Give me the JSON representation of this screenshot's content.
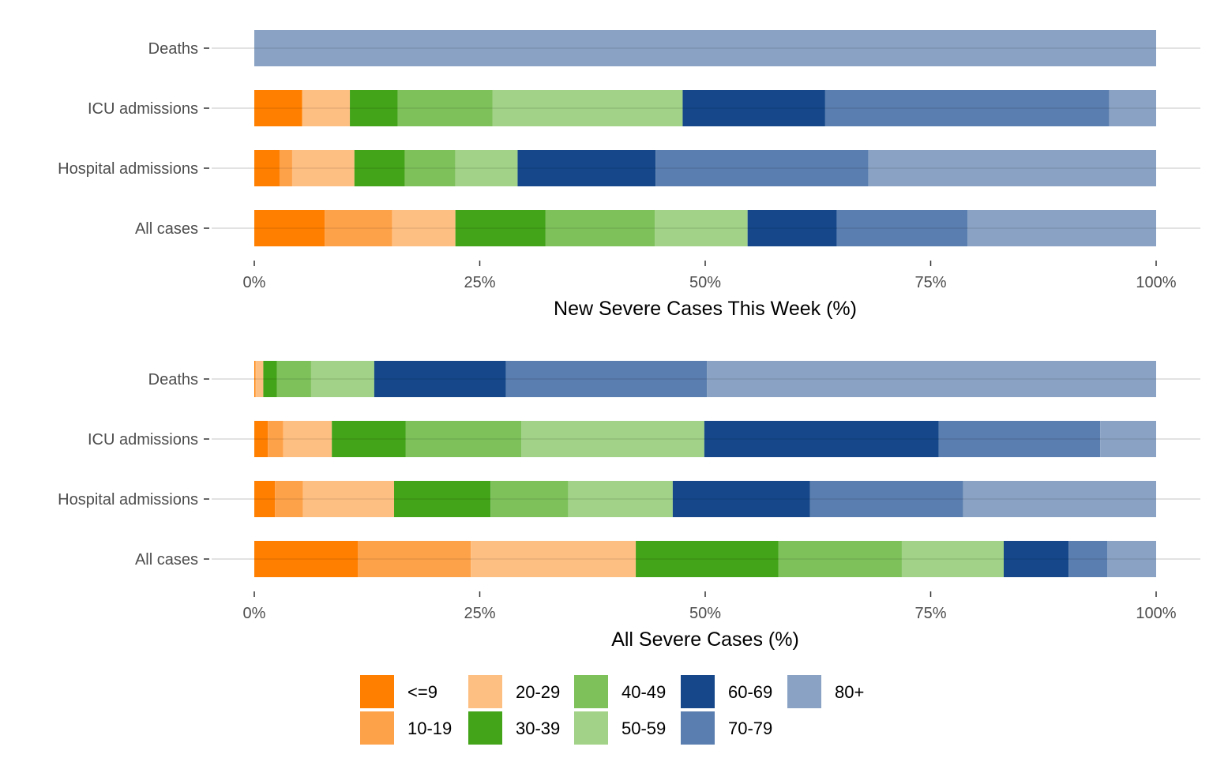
{
  "chart_data": [
    {
      "type": "bar",
      "orientation": "horizontal",
      "stacked": "percent",
      "xlabel": "New Severe Cases This Week (%)",
      "xlim": [
        0,
        100
      ],
      "xticks": [
        "0%",
        "25%",
        "50%",
        "75%",
        "100%"
      ],
      "categories": [
        "Deaths",
        "ICU admissions",
        "Hospital admissions",
        "All cases"
      ],
      "series": [
        {
          "name": "<=9",
          "values": [
            0,
            5.3,
            2.8,
            7.8
          ]
        },
        {
          "name": "10-19",
          "values": [
            0,
            0,
            1.4,
            7.5
          ]
        },
        {
          "name": "20-29",
          "values": [
            0,
            5.3,
            6.9,
            7.0
          ]
        },
        {
          "name": "30-39",
          "values": [
            0,
            5.3,
            5.6,
            10.0
          ]
        },
        {
          "name": "40-49",
          "values": [
            0,
            10.5,
            5.6,
            12.1
          ]
        },
        {
          "name": "50-59",
          "values": [
            0,
            21.1,
            6.9,
            10.3
          ]
        },
        {
          "name": "60-69",
          "values": [
            0,
            15.8,
            15.3,
            9.9
          ]
        },
        {
          "name": "70-79",
          "values": [
            0,
            31.5,
            23.6,
            14.5
          ]
        },
        {
          "name": "80+",
          "values": [
            100,
            5.2,
            31.9,
            20.9
          ]
        }
      ]
    },
    {
      "type": "bar",
      "orientation": "horizontal",
      "stacked": "percent",
      "xlabel": "All Severe Cases (%)",
      "xlim": [
        0,
        100
      ],
      "xticks": [
        "0%",
        "25%",
        "50%",
        "75%",
        "100%"
      ],
      "categories": [
        "Deaths",
        "ICU admissions",
        "Hospital admissions",
        "All cases"
      ],
      "series": [
        {
          "name": "<=9",
          "values": [
            0.1,
            1.5,
            2.3,
            11.5
          ]
        },
        {
          "name": "10-19",
          "values": [
            0.1,
            1.7,
            3.1,
            12.5
          ]
        },
        {
          "name": "20-29",
          "values": [
            0.8,
            5.4,
            10.1,
            18.3
          ]
        },
        {
          "name": "30-39",
          "values": [
            1.5,
            8.2,
            10.7,
            15.8
          ]
        },
        {
          "name": "40-49",
          "values": [
            3.8,
            12.8,
            8.6,
            13.7
          ]
        },
        {
          "name": "50-59",
          "values": [
            7.0,
            20.3,
            11.6,
            11.3
          ]
        },
        {
          "name": "60-69",
          "values": [
            14.6,
            26.0,
            15.2,
            7.2
          ]
        },
        {
          "name": "70-79",
          "values": [
            22.3,
            17.9,
            17.0,
            4.3
          ]
        },
        {
          "name": "80+",
          "values": [
            49.8,
            6.2,
            21.4,
            5.4
          ]
        }
      ]
    }
  ],
  "legend": {
    "placement": "bottom",
    "items": [
      {
        "label": "<=9",
        "color": "#ff7f00"
      },
      {
        "label": "10-19",
        "color": "#fea24a"
      },
      {
        "label": "20-29",
        "color": "#fec082"
      },
      {
        "label": "30-39",
        "color": "#43a319"
      },
      {
        "label": "40-49",
        "color": "#7ec15b"
      },
      {
        "label": "50-59",
        "color": "#a1d287"
      },
      {
        "label": "60-69",
        "color": "#15478a"
      },
      {
        "label": "70-79",
        "color": "#5a7eaf"
      },
      {
        "label": "80+",
        "color": "#8aa3c4"
      }
    ]
  }
}
